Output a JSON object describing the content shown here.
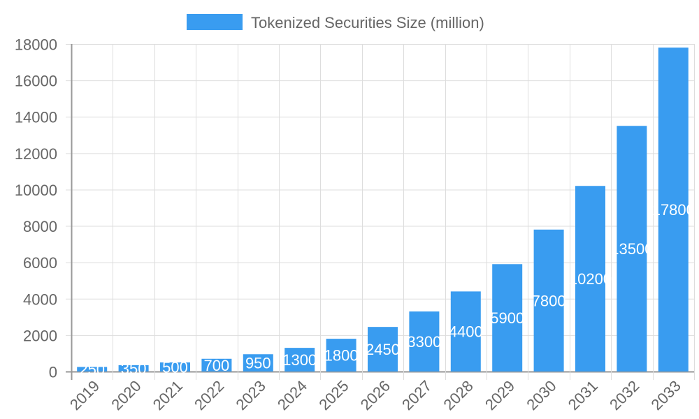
{
  "chart_data": {
    "type": "bar",
    "title": "",
    "legend": {
      "position": "top",
      "entries": [
        "Tokenized Securities Size (million)"
      ]
    },
    "categories": [
      "2019",
      "2020",
      "2021",
      "2022",
      "2023",
      "2024",
      "2025",
      "2026",
      "2027",
      "2028",
      "2029",
      "2030",
      "2031",
      "2032",
      "2033"
    ],
    "series": [
      {
        "name": "Tokenized Securities Size (million)",
        "values": [
          250,
          350,
          500,
          700,
          950,
          1300,
          1800,
          2450,
          3300,
          4400,
          5900,
          7800,
          10200,
          13500,
          17800
        ],
        "color": "#399cf0"
      }
    ],
    "ylim": [
      0,
      18000
    ],
    "yticks": [
      0,
      2000,
      4000,
      6000,
      8000,
      10000,
      12000,
      14000,
      16000,
      18000
    ],
    "grid": true,
    "data_labels": true,
    "xlabel": "",
    "ylabel": ""
  }
}
